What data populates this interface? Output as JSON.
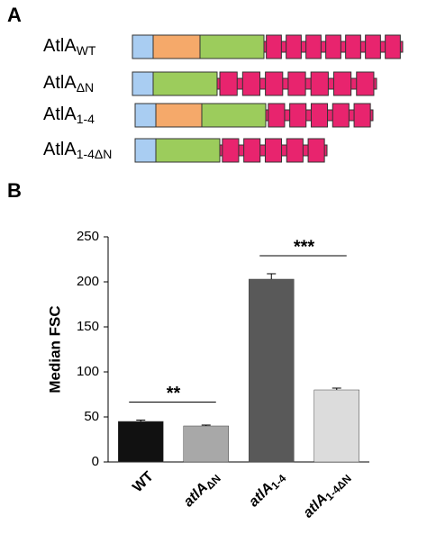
{
  "panel_a": {
    "label": "A",
    "constructs": [
      {
        "name": "AtlA",
        "sub": "WT"
      },
      {
        "name": "AtlA",
        "sub": "ΔN"
      },
      {
        "name": "AtlA",
        "sub": "1-4"
      },
      {
        "name": "AtlA",
        "sub": "1-4ΔN"
      }
    ]
  },
  "chart_data": {
    "type": "bar",
    "panel_label": "B",
    "y_label": "Median  FSC",
    "categories": [
      {
        "text": "WT"
      },
      {
        "text": "atlA",
        "sub": "ΔN"
      },
      {
        "text": "atlA",
        "sub": "1-4"
      },
      {
        "text": "atlA",
        "sub": "1-4ΔN"
      }
    ],
    "values": [
      45,
      40,
      203,
      80
    ],
    "errors": [
      1.5,
      1,
      6,
      2
    ],
    "colors": [
      "#111111",
      "#a8a8a8",
      "#595959",
      "#dcdcdc"
    ],
    "ylim": [
      0,
      250
    ],
    "yticks": [
      0,
      50,
      100,
      150,
      200,
      250
    ],
    "annotations": [
      {
        "text": "**",
        "between": [
          0,
          1
        ]
      },
      {
        "text": "***",
        "between": [
          2,
          3
        ]
      }
    ]
  }
}
